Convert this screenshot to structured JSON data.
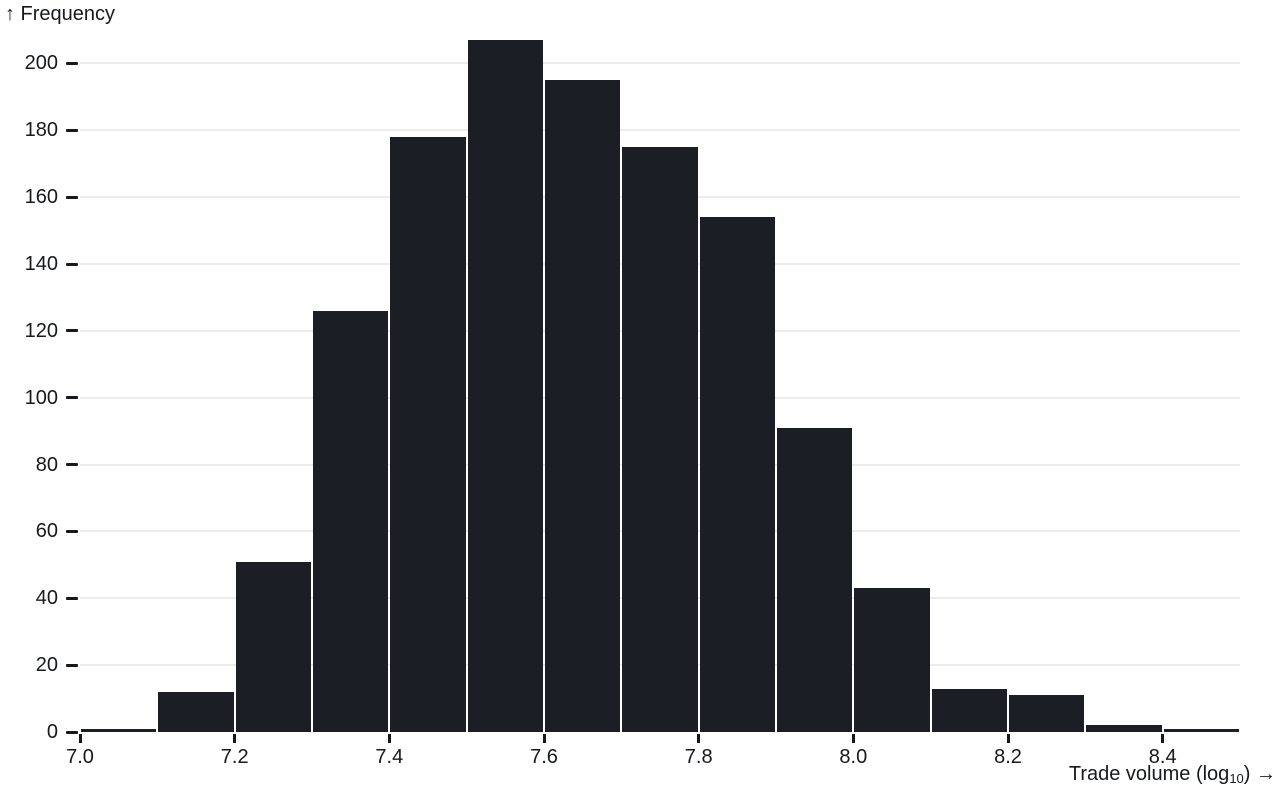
{
  "chart_data": {
    "type": "bar",
    "subtype": "histogram",
    "title": "",
    "ylabel": "↑ Frequency",
    "xlabel": "Trade volume (log10) →",
    "xlabel_parts": {
      "pre": "Trade volume (log",
      "sub": "10",
      "post": ") →"
    },
    "bin_width": 0.1,
    "bins": [
      7.0,
      7.1,
      7.2,
      7.3,
      7.4,
      7.5,
      7.6,
      7.7,
      7.8,
      7.9,
      8.0,
      8.1,
      8.2,
      8.3,
      8.4
    ],
    "values": [
      1,
      12,
      51,
      126,
      178,
      207,
      195,
      175,
      154,
      91,
      43,
      13,
      11,
      2,
      1
    ],
    "total_count": 1260,
    "xlim": [
      7.0,
      8.5
    ],
    "ylim": [
      0,
      200
    ],
    "x_tick_values": [
      7.0,
      7.2,
      7.4,
      7.6,
      7.8,
      8.0,
      8.2,
      8.4
    ],
    "x_tick_labels": [
      "7.0",
      "7.2",
      "7.4",
      "7.6",
      "7.8",
      "8.0",
      "8.2",
      "8.4"
    ],
    "y_tick_values": [
      0,
      20,
      40,
      60,
      80,
      100,
      120,
      140,
      160,
      180,
      200
    ],
    "y_tick_labels": [
      "0",
      "20",
      "40",
      "60",
      "80",
      "100",
      "120",
      "140",
      "160",
      "180",
      "200"
    ],
    "grid": true,
    "legend": false,
    "colors": {
      "bar": "#1b1e24",
      "grid": "#ececec",
      "text": "#16191e",
      "background": "#ffffff"
    }
  }
}
